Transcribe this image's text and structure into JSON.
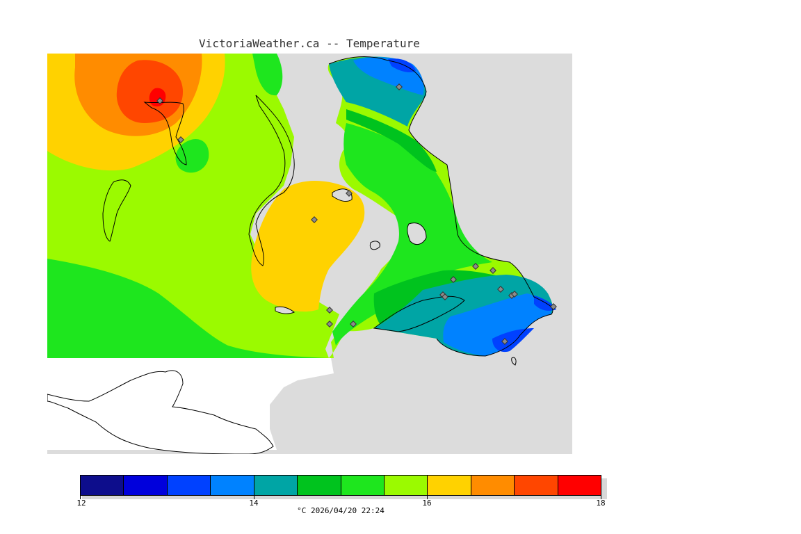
{
  "title": "VictoriaWeather.ca -- Temperature",
  "colors": {
    "water": "#dcdcdc",
    "no_data": "#ffffff",
    "levels": [
      "#0d0d8c",
      "#0000dc",
      "#0041ff",
      "#0082ff",
      "#00a5a5",
      "#00c31e",
      "#1ee61e",
      "#9bfa00",
      "#ffd200",
      "#ff8c00",
      "#ff4600",
      "#ff0000"
    ],
    "station_marker": "#8c8c8c"
  },
  "colorbar": {
    "ticks": [
      "12",
      "14",
      "16",
      "18"
    ],
    "caption": "°C  2026/04/20 22:24"
  }
}
